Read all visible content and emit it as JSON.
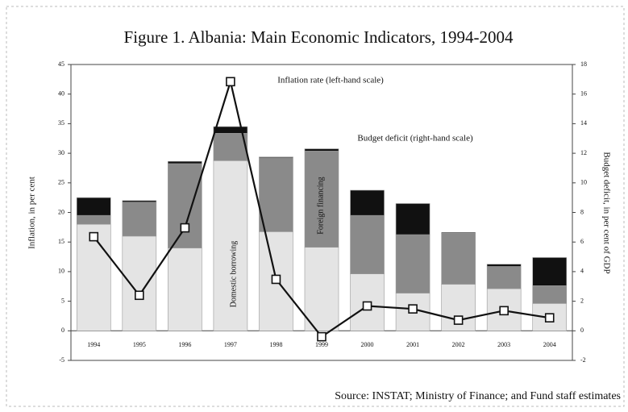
{
  "chart_data": {
    "type": "bar",
    "title": "Figure 1. Albania: Main Economic Indicators, 1994-2004",
    "y_label": "Inflation, in per cent",
    "y2_label": "Budget deficit, in per cent of GDP",
    "source": "Source: INSTAT; Ministry of Finance; and Fund staff estimates",
    "annotations": [
      "Inflation rate  (left-hand scale)",
      "Budget deficit  (right-hand scale)"
    ],
    "categories": [
      "1994",
      "1995",
      "1996",
      "1997",
      "1998",
      "1999",
      "2000",
      "2001",
      "2002",
      "2003",
      "2004"
    ],
    "ylim": [
      -5,
      45
    ],
    "yticks": [
      -5,
      0,
      5,
      10,
      15,
      20,
      25,
      30,
      35,
      40,
      45
    ],
    "y2lim": [
      -2,
      18
    ],
    "y2ticks": [
      -2,
      0,
      2,
      4,
      6,
      8,
      10,
      12,
      14,
      16,
      18
    ],
    "series": [
      {
        "name": "Domestic borrowing",
        "color": "#e4e4e4",
        "axis": "y2",
        "values": [
          7.2,
          6.4,
          5.6,
          11.5,
          6.7,
          5.65,
          3.85,
          2.55,
          3.15,
          2.85,
          1.85
        ]
      },
      {
        "name": "Foreign financing",
        "color": "#8a8a8a",
        "axis": "y2",
        "values": [
          0.6,
          2.3,
          5.7,
          1.85,
          5.0,
          6.5,
          3.95,
          3.95,
          3.45,
          1.5,
          1.2
        ]
      },
      {
        "color": "#111111",
        "axis": "y2",
        "values": [
          1.2,
          0.1,
          0.15,
          0.45,
          0.05,
          0.15,
          1.7,
          2.1,
          0.05,
          0.15,
          1.9
        ]
      },
      {
        "name": "Inflation rate",
        "type": "line",
        "color": "#111111",
        "values": [
          15.9,
          6.0,
          17.4,
          42.1,
          8.7,
          -1.0,
          4.2,
          3.7,
          1.8,
          3.4,
          2.2
        ]
      }
    ]
  }
}
